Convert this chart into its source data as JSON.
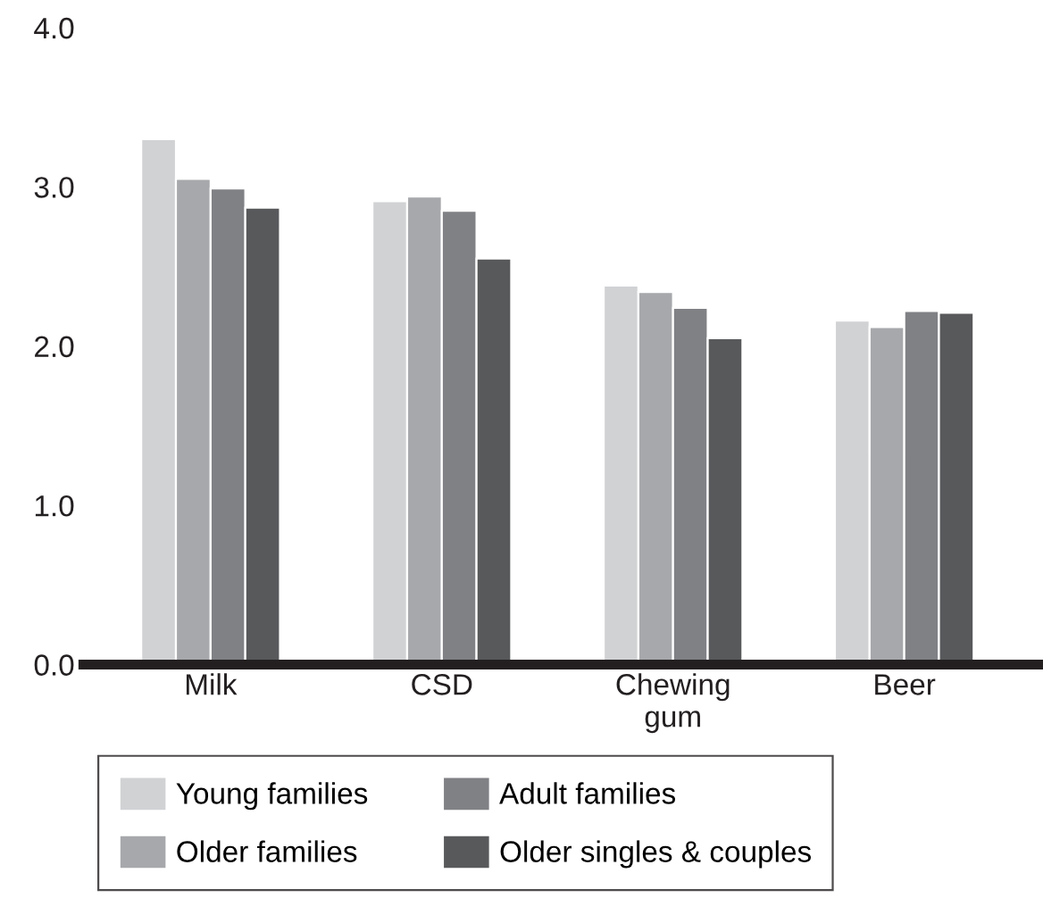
{
  "chart_data": {
    "type": "bar",
    "categories": [
      "Milk",
      "CSD",
      "Chewing\ngum",
      "Beer"
    ],
    "series": [
      {
        "name": "Young families",
        "color": "#d1d2d4",
        "values": [
          3.3,
          2.91,
          2.38,
          2.16
        ]
      },
      {
        "name": "Older families",
        "color": "#a7a8ab",
        "values": [
          3.05,
          2.94,
          2.34,
          2.12
        ]
      },
      {
        "name": "Adult families",
        "color": "#808185",
        "values": [
          2.99,
          2.85,
          2.24,
          2.22
        ]
      },
      {
        "name": "Older singles & couples",
        "color": "#58595b",
        "values": [
          2.87,
          2.55,
          2.05,
          2.21
        ]
      }
    ],
    "ylim": [
      0,
      4
    ],
    "yticks": [
      {
        "value": 0,
        "label": "0.0"
      },
      {
        "value": 1,
        "label": "1.0"
      },
      {
        "value": 2,
        "label": "2.0"
      },
      {
        "value": 3,
        "label": "3.0"
      },
      {
        "value": 4,
        "label": "4.0"
      }
    ],
    "grid": false,
    "legend": "bottom"
  }
}
